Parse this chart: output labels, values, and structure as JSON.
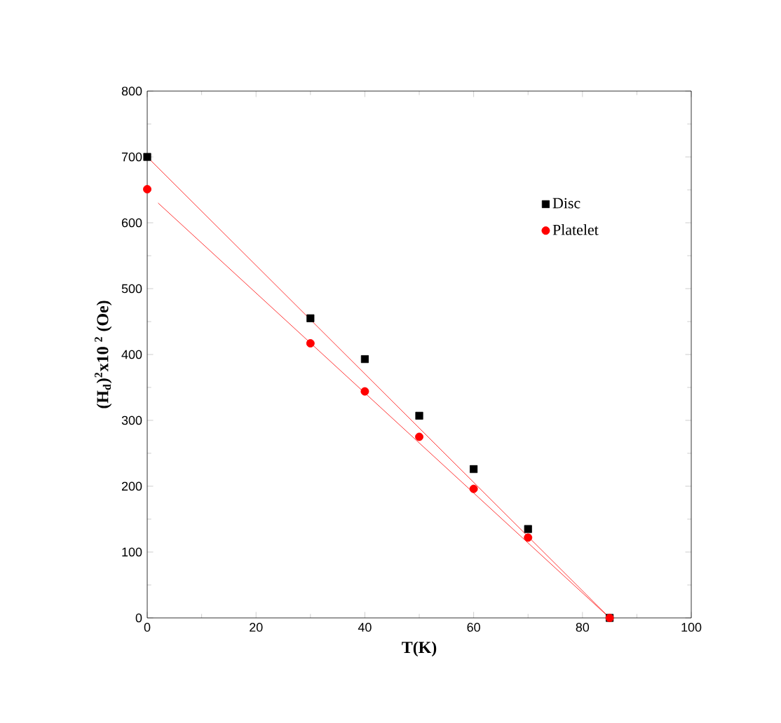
{
  "chart_data": {
    "type": "scatter",
    "xlabel": "T(K)",
    "ylabel": "(H$_{d}$)$^{2}$x10 $^{2}$ (Oe)",
    "xlim": [
      0,
      100
    ],
    "xticks": [
      0,
      20,
      40,
      60,
      80,
      100
    ],
    "ylim": [
      0,
      800
    ],
    "yticks": [
      0,
      100,
      200,
      300,
      400,
      500,
      600,
      700,
      800
    ],
    "legend": "top right",
    "grid": false,
    "series": [
      {
        "name": "Disc",
        "marker": "square",
        "color": "#000000",
        "x": [
          0,
          30,
          40,
          50,
          60,
          70,
          85
        ],
        "values": [
          700,
          455,
          393,
          307,
          226,
          135,
          0
        ]
      },
      {
        "name": "Platelet",
        "marker": "circle",
        "color": "#ff0000",
        "x": [
          0,
          30,
          40,
          50,
          60,
          70,
          85
        ],
        "values": [
          651,
          417,
          344,
          275,
          196,
          122,
          0
        ]
      },
      {
        "type": "line",
        "marker": "none",
        "color": "#ff0000",
        "x": [
          0,
          85
        ],
        "values": [
          700,
          0
        ]
      },
      {
        "type": "line",
        "marker": "none",
        "color": "#ff0000",
        "x": [
          2,
          85
        ],
        "values": [
          630,
          0
        ]
      }
    ]
  }
}
